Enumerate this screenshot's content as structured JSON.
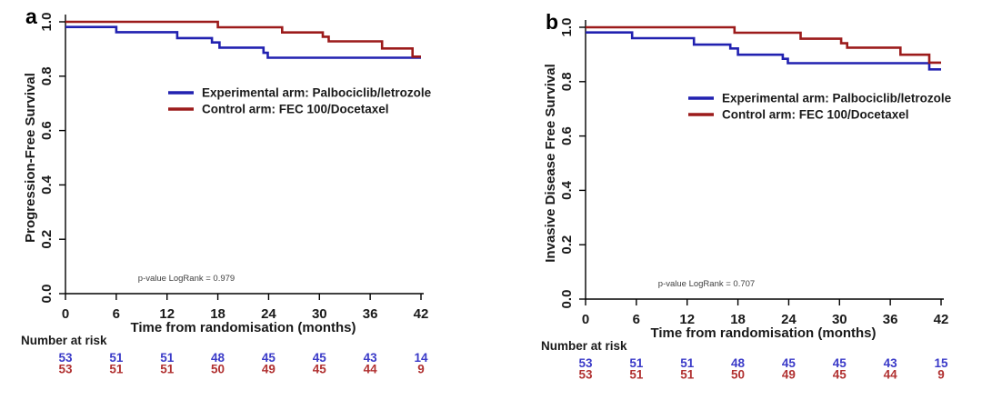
{
  "figure": {
    "background": "#ffffff",
    "colors": {
      "experimental": "#2121b0",
      "control": "#9c1b1b",
      "risk_experimental": "#3a3ac8",
      "risk_control": "#b13131",
      "text": "#1a1a1a",
      "pvalue_text": "#404040",
      "axis": "#000000"
    },
    "legend": [
      {
        "key": "experimental",
        "label": "Experimental arm: Palbociclib/letrozole"
      },
      {
        "key": "control",
        "label": "Control arm: FEC 100/Docetaxel"
      }
    ],
    "xlabel": "Time from randomisation (months)",
    "x_tick_labels": [
      "0",
      "6",
      "12",
      "18",
      "24",
      "30",
      "36",
      "42"
    ],
    "y_tick_labels": [
      "1.0",
      "0.8",
      "0.6",
      "0.4",
      "0.2",
      "0.0"
    ],
    "risk_header": "Number at risk"
  },
  "chart_data": [
    {
      "type": "line",
      "subtype": "kaplan-meier-step",
      "panel_letter": "a",
      "ylabel": "Progression-Free Survival",
      "xlabel": "Time from randomisation (months)",
      "xlim": [
        0,
        42
      ],
      "ylim": [
        0.0,
        1.0
      ],
      "x_ticks": [
        0,
        6,
        12,
        18,
        24,
        30,
        36,
        42
      ],
      "y_ticks": [
        1.0,
        0.8,
        0.6,
        0.4,
        0.2,
        0.0
      ],
      "grid": false,
      "legend_position": "center",
      "pvalue_label": "p-value LogRank = 0.979",
      "series": [
        {
          "name": "Experimental arm: Palbociclib/letrozole",
          "color_key": "experimental",
          "steps": [
            [
              0,
              0.981
            ],
            [
              6.0,
              0.962
            ],
            [
              13.2,
              0.94
            ],
            [
              17.3,
              0.924
            ],
            [
              18.2,
              0.905
            ],
            [
              23.4,
              0.886
            ],
            [
              23.9,
              0.868
            ],
            [
              42,
              0.868
            ]
          ]
        },
        {
          "name": "Control arm: FEC 100/Docetaxel",
          "color_key": "control",
          "steps": [
            [
              0,
              1.0
            ],
            [
              18.0,
              0.98
            ],
            [
              25.6,
              0.961
            ],
            [
              30.4,
              0.945
            ],
            [
              31.1,
              0.928
            ],
            [
              37.4,
              0.902
            ],
            [
              41.0,
              0.872
            ],
            [
              42,
              0.872
            ]
          ]
        }
      ],
      "number_at_risk": {
        "times": [
          0,
          6,
          12,
          18,
          24,
          30,
          36,
          42
        ],
        "rows": [
          {
            "name": "Experimental arm",
            "color_key": "risk_experimental",
            "values": [
              53,
              51,
              51,
              48,
              45,
              45,
              43,
              14
            ]
          },
          {
            "name": "Control arm",
            "color_key": "risk_control",
            "values": [
              53,
              51,
              51,
              50,
              49,
              45,
              44,
              9
            ]
          }
        ]
      }
    },
    {
      "type": "line",
      "subtype": "kaplan-meier-step",
      "panel_letter": "b",
      "ylabel": "Invasive Disease Free Survival",
      "xlabel": "Time from randomisation (months)",
      "xlim": [
        0,
        42
      ],
      "ylim": [
        0.0,
        1.0
      ],
      "x_ticks": [
        0,
        6,
        12,
        18,
        24,
        30,
        36,
        42
      ],
      "y_ticks": [
        1.0,
        0.8,
        0.6,
        0.4,
        0.2,
        0.0
      ],
      "grid": false,
      "legend_position": "center",
      "pvalue_label": "p-value LogRank = 0.707",
      "series": [
        {
          "name": "Experimental arm: Palbociclib/letrozole",
          "color_key": "experimental",
          "steps": [
            [
              0,
              0.981
            ],
            [
              5.5,
              0.96
            ],
            [
              12.8,
              0.936
            ],
            [
              17.1,
              0.922
            ],
            [
              18.0,
              0.899
            ],
            [
              23.3,
              0.884
            ],
            [
              23.9,
              0.868
            ],
            [
              40.6,
              0.845
            ],
            [
              42,
              0.845
            ]
          ]
        },
        {
          "name": "Control arm: FEC 100/Docetaxel",
          "color_key": "control",
          "steps": [
            [
              0,
              1.0
            ],
            [
              17.6,
              0.98
            ],
            [
              25.4,
              0.958
            ],
            [
              30.2,
              0.941
            ],
            [
              30.9,
              0.925
            ],
            [
              37.2,
              0.899
            ],
            [
              40.6,
              0.87
            ],
            [
              42,
              0.87
            ]
          ]
        }
      ],
      "number_at_risk": {
        "times": [
          0,
          6,
          12,
          18,
          24,
          30,
          36,
          42
        ],
        "rows": [
          {
            "name": "Experimental arm",
            "color_key": "risk_experimental",
            "values": [
              53,
              51,
              51,
              48,
              45,
              45,
              43,
              15
            ]
          },
          {
            "name": "Control arm",
            "color_key": "risk_control",
            "values": [
              53,
              51,
              51,
              50,
              49,
              45,
              44,
              9
            ]
          }
        ]
      }
    }
  ]
}
